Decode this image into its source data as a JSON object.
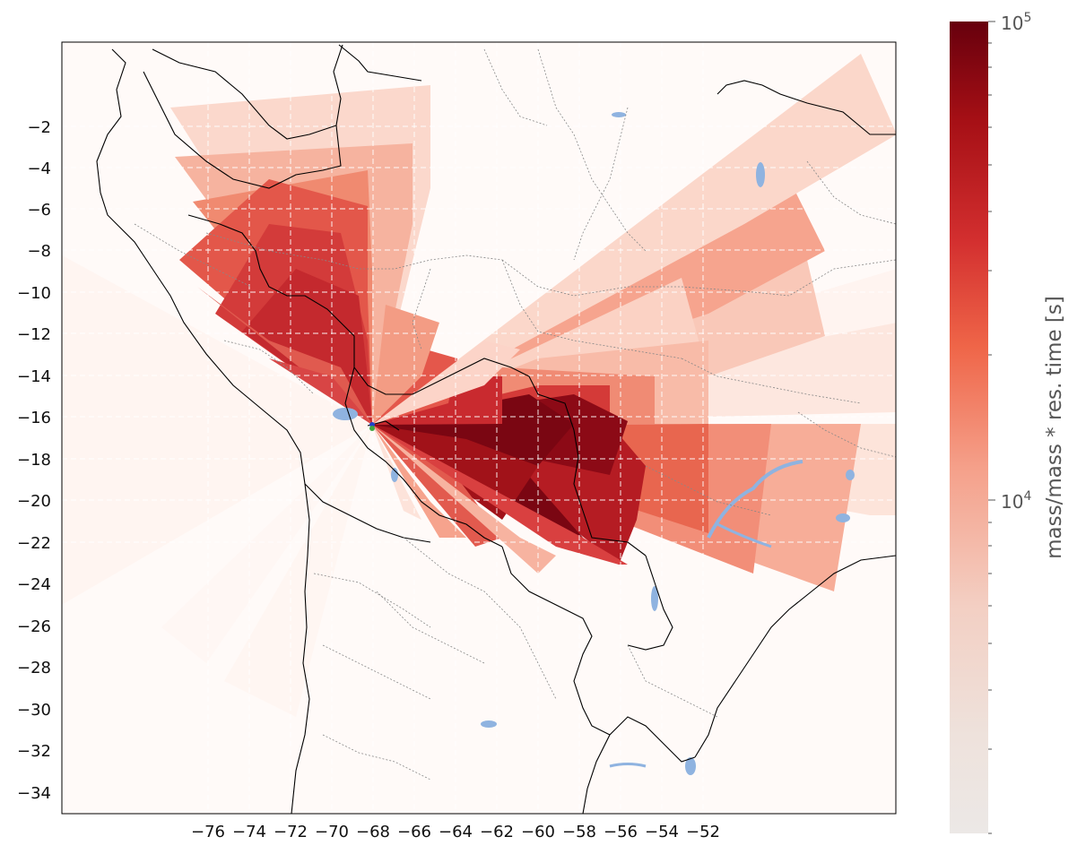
{
  "map": {
    "x_ticks": [
      "−76",
      "−74",
      "−72",
      "−70",
      "−68",
      "−66",
      "−64",
      "−62",
      "−60",
      "−58",
      "−56",
      "−54",
      "−52"
    ],
    "y_ticks": [
      "−2",
      "−4",
      "−6",
      "−8",
      "−10",
      "−12",
      "−14",
      "−16",
      "−18",
      "−20",
      "−22",
      "−24",
      "−26",
      "−28",
      "−30",
      "−32",
      "−34"
    ],
    "grid_style": "dashed white",
    "source_markers": [
      "blue",
      "green"
    ],
    "lake_color": "#8fb3e0"
  },
  "colorbar": {
    "label": "mass/mass * res. time [s]",
    "tick_base": "10",
    "tick_labels": [
      {
        "exp": "5"
      },
      {
        "exp": "4"
      }
    ],
    "colormap": "Reds",
    "scale": "log"
  },
  "colors": {
    "max": "#67000d",
    "min": "#ece8e6",
    "land_outline": "#000000",
    "admin_outline": "#888888"
  }
}
